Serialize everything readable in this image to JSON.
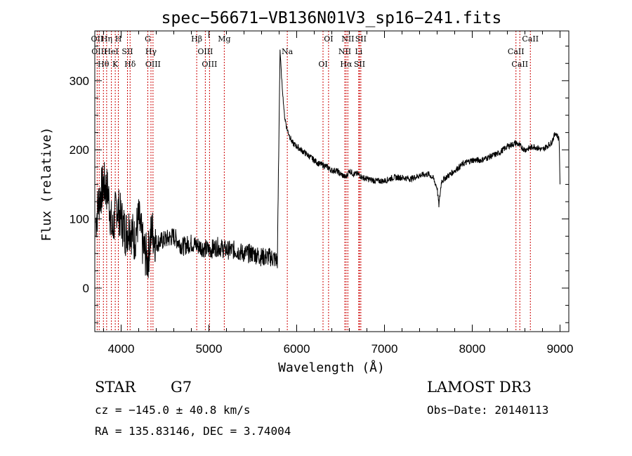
{
  "chart_data": {
    "type": "line",
    "title": "spec−56671−VB136N01V3_sp16−241.fits",
    "xlabel": "Wavelength (Å)",
    "ylabel": "Flux (relative)",
    "xlim": [
      3700,
      9100
    ],
    "ylim": [
      -63,
      372
    ],
    "x_ticks": [
      4000,
      5000,
      6000,
      7000,
      8000,
      9000
    ],
    "x_tick_labels": [
      "4000",
      "5000",
      "6000",
      "7000",
      "8000",
      "9000"
    ],
    "y_ticks": [
      0,
      100,
      200,
      300
    ],
    "y_tick_labels": [
      "0",
      "100",
      "200",
      "300"
    ],
    "series": [
      {
        "name": "flux",
        "x": [
          3710,
          3750,
          3800,
          3850,
          3900,
          3950,
          4000,
          4050,
          4100,
          4150,
          4200,
          4250,
          4300,
          4350,
          4400,
          4500,
          4600,
          4700,
          4800,
          4900,
          5000,
          5100,
          5200,
          5300,
          5400,
          5500,
          5600,
          5700,
          5780,
          5810,
          5830,
          5860,
          5890,
          5920,
          5950,
          6000,
          6050,
          6100,
          6150,
          6200,
          6250,
          6300,
          6350,
          6400,
          6450,
          6500,
          6560,
          6600,
          6650,
          6700,
          6750,
          6800,
          6900,
          7000,
          7100,
          7200,
          7300,
          7400,
          7500,
          7550,
          7600,
          7620,
          7650,
          7700,
          7800,
          7900,
          8000,
          8100,
          8200,
          8300,
          8400,
          8500,
          8550,
          8600,
          8700,
          8800,
          8900,
          8950,
          8990,
          9000
        ],
        "y": [
          95,
          130,
          150,
          140,
          80,
          120,
          100,
          80,
          90,
          70,
          100,
          60,
          40,
          85,
          65,
          70,
          75,
          60,
          65,
          60,
          55,
          60,
          55,
          55,
          50,
          50,
          45,
          45,
          40,
          345,
          300,
          250,
          230,
          220,
          210,
          205,
          200,
          195,
          190,
          185,
          180,
          178,
          175,
          170,
          170,
          165,
          160,
          170,
          165,
          165,
          160,
          158,
          155,
          155,
          160,
          160,
          158,
          163,
          165,
          160,
          145,
          120,
          155,
          160,
          170,
          180,
          185,
          185,
          190,
          195,
          205,
          210,
          205,
          200,
          205,
          200,
          210,
          225,
          215,
          150
        ],
        "line_color": "#000000"
      }
    ],
    "line_markers": [
      {
        "wavelength": 3727,
        "label": "OII"
      },
      {
        "wavelength": 3750,
        "label": "OIII"
      },
      {
        "wavelength": 3798,
        "label": "Hθ"
      },
      {
        "wavelength": 3835,
        "label": "Hη"
      },
      {
        "wavelength": 3889,
        "label": "HeI"
      },
      {
        "wavelength": 3933,
        "label": "K"
      },
      {
        "wavelength": 3968,
        "label": "H"
      },
      {
        "wavelength": 4072,
        "label": "SII"
      },
      {
        "wavelength": 4102,
        "label": "Hδ"
      },
      {
        "wavelength": 4304,
        "label": "G"
      },
      {
        "wavelength": 4340,
        "label": "Hγ"
      },
      {
        "wavelength": 4363,
        "label": "OIII"
      },
      {
        "wavelength": 4861,
        "label": "Hβ"
      },
      {
        "wavelength": 4959,
        "label": "OIII"
      },
      {
        "wavelength": 5007,
        "label": "OIII"
      },
      {
        "wavelength": 5175,
        "label": "Mg"
      },
      {
        "wavelength": 5893,
        "label": "Na"
      },
      {
        "wavelength": 6300,
        "label": "OI"
      },
      {
        "wavelength": 6363,
        "label": "OI"
      },
      {
        "wavelength": 6548,
        "label": "NII"
      },
      {
        "wavelength": 6563,
        "label": "Hα"
      },
      {
        "wavelength": 6583,
        "label": "NII"
      },
      {
        "wavelength": 6707,
        "label": "Li"
      },
      {
        "wavelength": 6716,
        "label": "SII"
      },
      {
        "wavelength": 6731,
        "label": "SII"
      },
      {
        "wavelength": 8498,
        "label": "CaII"
      },
      {
        "wavelength": 8542,
        "label": "CaII"
      },
      {
        "wavelength": 8662,
        "label": "CaII"
      }
    ],
    "marker_color": "#cc0000"
  },
  "info": {
    "object_class": "STAR",
    "subclass": "G7",
    "survey": "LAMOST DR3",
    "cz": "cz = −145.0 ± 40.8 km/s",
    "obs_date": "Obs−Date: 20140113",
    "coords": "RA = 135.83146, DEC =   3.74004"
  }
}
